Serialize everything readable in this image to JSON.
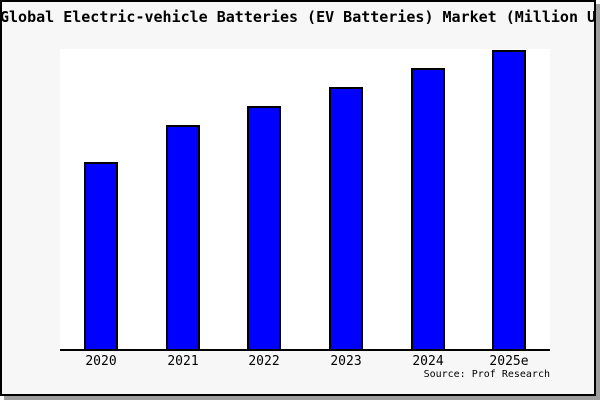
{
  "title": "Global Electric-vehicle Batteries (EV Batteries) Market (Million USD)",
  "source": "Source: Prof Research",
  "colors": {
    "bar_fill": "#0000ff",
    "bar_edge": "#000000",
    "plot_background": "#ffffff",
    "card_background": "#f7f7f7",
    "card_border": "#000000",
    "card_shadow": "#9e9e9e",
    "text": "#000000"
  },
  "chart_data": {
    "type": "bar",
    "title": "Global Electric-vehicle Batteries (EV Batteries) Market (Million USD)",
    "categories": [
      "2020",
      "2021",
      "2022",
      "2023",
      "2024",
      "2025e"
    ],
    "values": [
      62.3,
      74.7,
      81.0,
      87.3,
      93.7,
      99.7
    ],
    "values_note": "relative bar heights (% of plot height); chart shows no y-axis tick labels or numeric data labels",
    "xlabel": "",
    "ylabel": "",
    "ylim": [
      0,
      100
    ],
    "grid": false,
    "legend": false,
    "y_axis_labels_visible": false,
    "bar_color": "#0000ff",
    "bar_edge_color": "#000000"
  }
}
